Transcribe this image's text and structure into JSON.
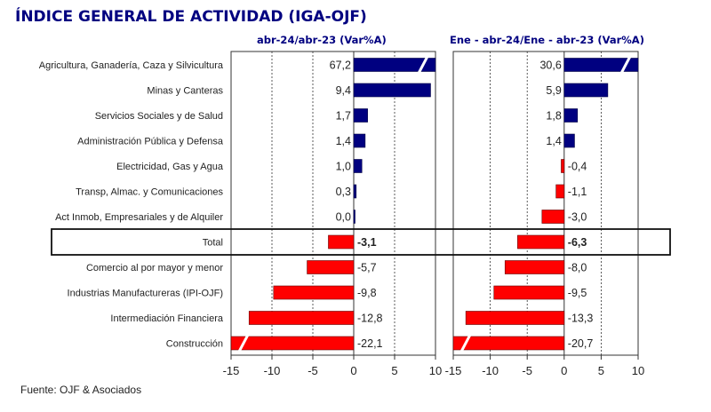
{
  "title": "ÍNDICE GENERAL DE ACTIVIDAD (IGA-OJF)",
  "source": "Fuente: OJF & Asociados",
  "colors": {
    "positive": "#000080",
    "negative": "#ff0000",
    "title": "#000080"
  },
  "chart_data": {
    "type": "bar",
    "orientation": "horizontal",
    "title": "ÍNDICE GENERAL DE ACTIVIDAD (IGA-OJF)",
    "categories": [
      "Agricultura, Ganadería, Caza y Silvicultura",
      "Minas y Canteras",
      "Servicios Sociales y de Salud",
      "Administración Pública y Defensa",
      "Electricidad, Gas y Agua",
      "Transp, Almac. y Comunicaciones",
      "Act Inmob, Empresariales y de Alquiler",
      "Total",
      "Comercio al por mayor y menor",
      "Industrias Manufactureras (IPI-OJF)",
      "Intermediación Financiera",
      "Construcción"
    ],
    "highlight_category": "Total",
    "series": [
      {
        "name": "abr-24/abr-23  (Var%A)",
        "values": [
          67.2,
          9.4,
          1.7,
          1.4,
          1.0,
          0.3,
          0.0,
          -3.1,
          -5.7,
          -9.8,
          -12.8,
          -22.1
        ],
        "labels": [
          "67,2",
          "9,4",
          "1,7",
          "1,4",
          "1,0",
          "0,3",
          "0,0",
          "-3,1",
          "-5,7",
          "-9,8",
          "-12,8",
          "-22,1"
        ],
        "xlim": [
          -15,
          10
        ],
        "xticks": [
          -15,
          -10,
          -5,
          0,
          5,
          10
        ],
        "xtick_labels": [
          "-15",
          "-10",
          "-5",
          "0",
          "5",
          "10"
        ],
        "broken_bars": [
          0,
          11
        ]
      },
      {
        "name": "Ene - abr-24/Ene - abr-23  (Var%A)",
        "values": [
          30.6,
          5.9,
          1.8,
          1.4,
          -0.4,
          -1.1,
          -3.0,
          -6.3,
          -8.0,
          -9.5,
          -13.3,
          -20.7
        ],
        "labels": [
          "30,6",
          "5,9",
          "1,8",
          "1,4",
          "-0,4",
          "-1,1",
          "-3,0",
          "-6,3",
          "-8,0",
          "-9,5",
          "-13,3",
          "-20,7"
        ],
        "xlim": [
          -15,
          10
        ],
        "xticks": [
          -15,
          -10,
          -5,
          0,
          5,
          10
        ],
        "xtick_labels": [
          "-15",
          "-10",
          "-5",
          "0",
          "5",
          "10"
        ],
        "broken_bars": [
          0,
          11
        ]
      }
    ],
    "grid": "vertical dashed",
    "legend": "none"
  }
}
